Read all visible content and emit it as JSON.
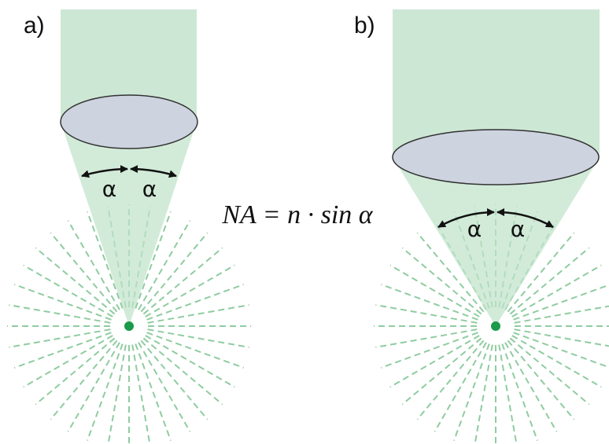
{
  "panels": [
    {
      "label": "a)",
      "angles": [
        "α",
        "α"
      ]
    },
    {
      "label": "b)",
      "angles": [
        "α",
        "α"
      ]
    }
  ],
  "formula": "NA = n · sin α"
}
